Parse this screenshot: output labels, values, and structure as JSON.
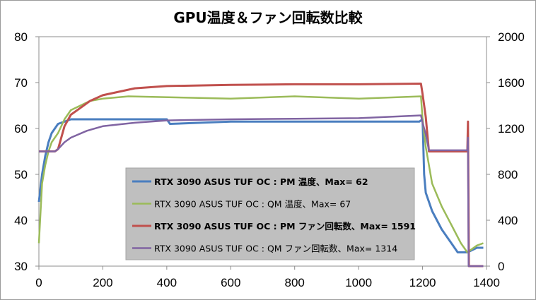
{
  "chart_data": {
    "type": "line",
    "title": "GPU温度＆ファン回転数比較",
    "xlabel": "",
    "ylabel": "",
    "y2label": "",
    "xlim": [
      0,
      1400
    ],
    "ylim": [
      30,
      80
    ],
    "y2lim": [
      0,
      2000
    ],
    "x_ticks": [
      "0",
      "200",
      "400",
      "600",
      "800",
      "1000",
      "1200",
      "1400"
    ],
    "y_ticks": [
      "30",
      "40",
      "50",
      "60",
      "70",
      "80"
    ],
    "y2_ticks": [
      "0",
      "400",
      "800",
      "1200",
      "1600",
      "2000"
    ],
    "grid": "none",
    "legend_position": "center-left",
    "series": [
      {
        "name": "RTX 3090 ASUS TUF OC : PM 温度、Max= 62",
        "axis": "left",
        "color": "#4a7ebf",
        "width": 3,
        "bold": true,
        "points": [
          [
            0,
            44
          ],
          [
            10,
            50
          ],
          [
            20,
            54
          ],
          [
            30,
            57
          ],
          [
            40,
            59
          ],
          [
            50,
            60
          ],
          [
            60,
            61
          ],
          [
            80,
            61.5
          ],
          [
            100,
            62
          ],
          [
            200,
            62
          ],
          [
            400,
            62
          ],
          [
            410,
            61
          ],
          [
            600,
            61.5
          ],
          [
            800,
            61.5
          ],
          [
            1000,
            61.5
          ],
          [
            1190,
            61.5
          ],
          [
            1200,
            62
          ],
          [
            1205,
            50
          ],
          [
            1210,
            46
          ],
          [
            1230,
            42
          ],
          [
            1260,
            38
          ],
          [
            1290,
            35
          ],
          [
            1310,
            33
          ],
          [
            1340,
            33
          ],
          [
            1370,
            34
          ],
          [
            1390,
            34
          ]
        ]
      },
      {
        "name": "RTX 3090 ASUS TUF OC : QM 温度、Max= 67",
        "axis": "left",
        "color": "#9bbb59",
        "width": 2.5,
        "bold": false,
        "points": [
          [
            0,
            35
          ],
          [
            10,
            48
          ],
          [
            20,
            52
          ],
          [
            30,
            55
          ],
          [
            40,
            57
          ],
          [
            60,
            59
          ],
          [
            80,
            62
          ],
          [
            100,
            64
          ],
          [
            130,
            65
          ],
          [
            160,
            66
          ],
          [
            200,
            66.5
          ],
          [
            280,
            67
          ],
          [
            600,
            66.5
          ],
          [
            800,
            67
          ],
          [
            1000,
            66.5
          ],
          [
            1195,
            67
          ],
          [
            1200,
            62
          ],
          [
            1210,
            56
          ],
          [
            1230,
            48
          ],
          [
            1260,
            43
          ],
          [
            1290,
            39
          ],
          [
            1320,
            35
          ],
          [
            1340,
            33
          ],
          [
            1370,
            34.5
          ],
          [
            1390,
            35
          ]
        ]
      },
      {
        "name": "RTX 3090 ASUS TUF OC : PM ファン回転数、Max= 1591",
        "axis": "right",
        "color": "#c0504d",
        "width": 3,
        "bold": true,
        "points": [
          [
            0,
            1000
          ],
          [
            50,
            1000
          ],
          [
            60,
            1020
          ],
          [
            80,
            1220
          ],
          [
            100,
            1320
          ],
          [
            130,
            1380
          ],
          [
            160,
            1440
          ],
          [
            200,
            1490
          ],
          [
            250,
            1520
          ],
          [
            300,
            1550
          ],
          [
            400,
            1570
          ],
          [
            600,
            1580
          ],
          [
            800,
            1585
          ],
          [
            1000,
            1585
          ],
          [
            1195,
            1591
          ],
          [
            1200,
            1500
          ],
          [
            1210,
            1300
          ],
          [
            1220,
            1000
          ],
          [
            1340,
            1000
          ],
          [
            1342,
            1260
          ],
          [
            1345,
            0
          ],
          [
            1390,
            0
          ]
        ]
      },
      {
        "name": "RTX 3090 ASUS TUF OC : QM ファン回転数、Max= 1314",
        "axis": "right",
        "color": "#8064a2",
        "width": 2.5,
        "bold": false,
        "points": [
          [
            0,
            1000
          ],
          [
            50,
            1000
          ],
          [
            60,
            1020
          ],
          [
            80,
            1080
          ],
          [
            100,
            1120
          ],
          [
            150,
            1180
          ],
          [
            200,
            1220
          ],
          [
            300,
            1250
          ],
          [
            400,
            1270
          ],
          [
            600,
            1280
          ],
          [
            800,
            1285
          ],
          [
            1000,
            1290
          ],
          [
            1195,
            1314
          ],
          [
            1200,
            1250
          ],
          [
            1210,
            1150
          ],
          [
            1220,
            1010
          ],
          [
            1340,
            1010
          ],
          [
            1342,
            1120
          ],
          [
            1344,
            0
          ],
          [
            1390,
            0
          ]
        ]
      }
    ]
  }
}
